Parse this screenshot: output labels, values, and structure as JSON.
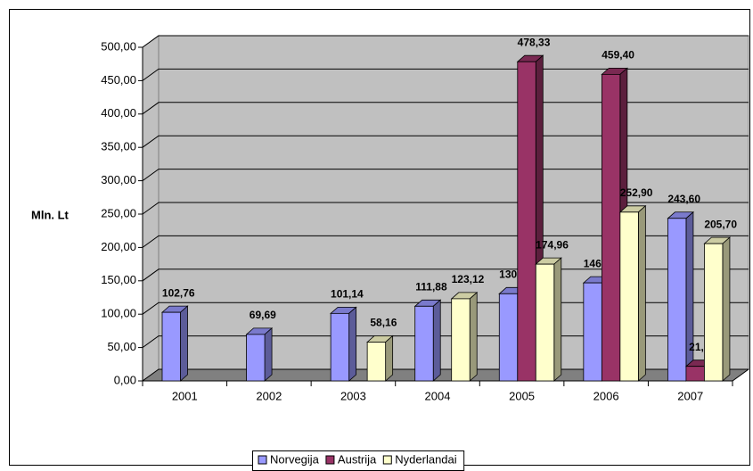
{
  "chart_data": {
    "type": "bar3d",
    "y_label": "Mln. Lt",
    "categories": [
      "2001",
      "2002",
      "2003",
      "2004",
      "2005",
      "2006",
      "2007"
    ],
    "series": [
      {
        "name": "Norvegija",
        "color": "#9999ff",
        "values": [
          102.76,
          69.69,
          101.14,
          111.88,
          130.6,
          146.9,
          243.6
        ],
        "value_labels": [
          "102,76",
          "69,69",
          "101,14",
          "111,88",
          "130,60",
          "146,90",
          "243,60"
        ]
      },
      {
        "name": "Austrija",
        "color": "#993366",
        "values": [
          null,
          null,
          null,
          null,
          478.33,
          459.4,
          21.8
        ],
        "value_labels": [
          null,
          null,
          null,
          null,
          "478,33",
          "459,40",
          "21,80"
        ]
      },
      {
        "name": "Nyderlandai",
        "color": "#ffffcc",
        "values": [
          null,
          null,
          58.16,
          123.12,
          174.96,
          252.9,
          205.7
        ],
        "value_labels": [
          null,
          null,
          "58,16",
          "123,12",
          "174,96",
          "252,90",
          "205,70"
        ]
      }
    ],
    "ylim": [
      0,
      500
    ],
    "yticks": [
      {
        "value": 0,
        "label": "0,00"
      },
      {
        "value": 50,
        "label": "50,00"
      },
      {
        "value": 100,
        "label": "100,00"
      },
      {
        "value": 150,
        "label": "150,00"
      },
      {
        "value": 200,
        "label": "200,00"
      },
      {
        "value": 250,
        "label": "250,00"
      },
      {
        "value": 300,
        "label": "300,00"
      },
      {
        "value": 350,
        "label": "350,00"
      },
      {
        "value": 400,
        "label": "400,00"
      },
      {
        "value": 450,
        "label": "450,00"
      },
      {
        "value": 500,
        "label": "500,00"
      }
    ],
    "grid": true,
    "legend": "bottom"
  }
}
